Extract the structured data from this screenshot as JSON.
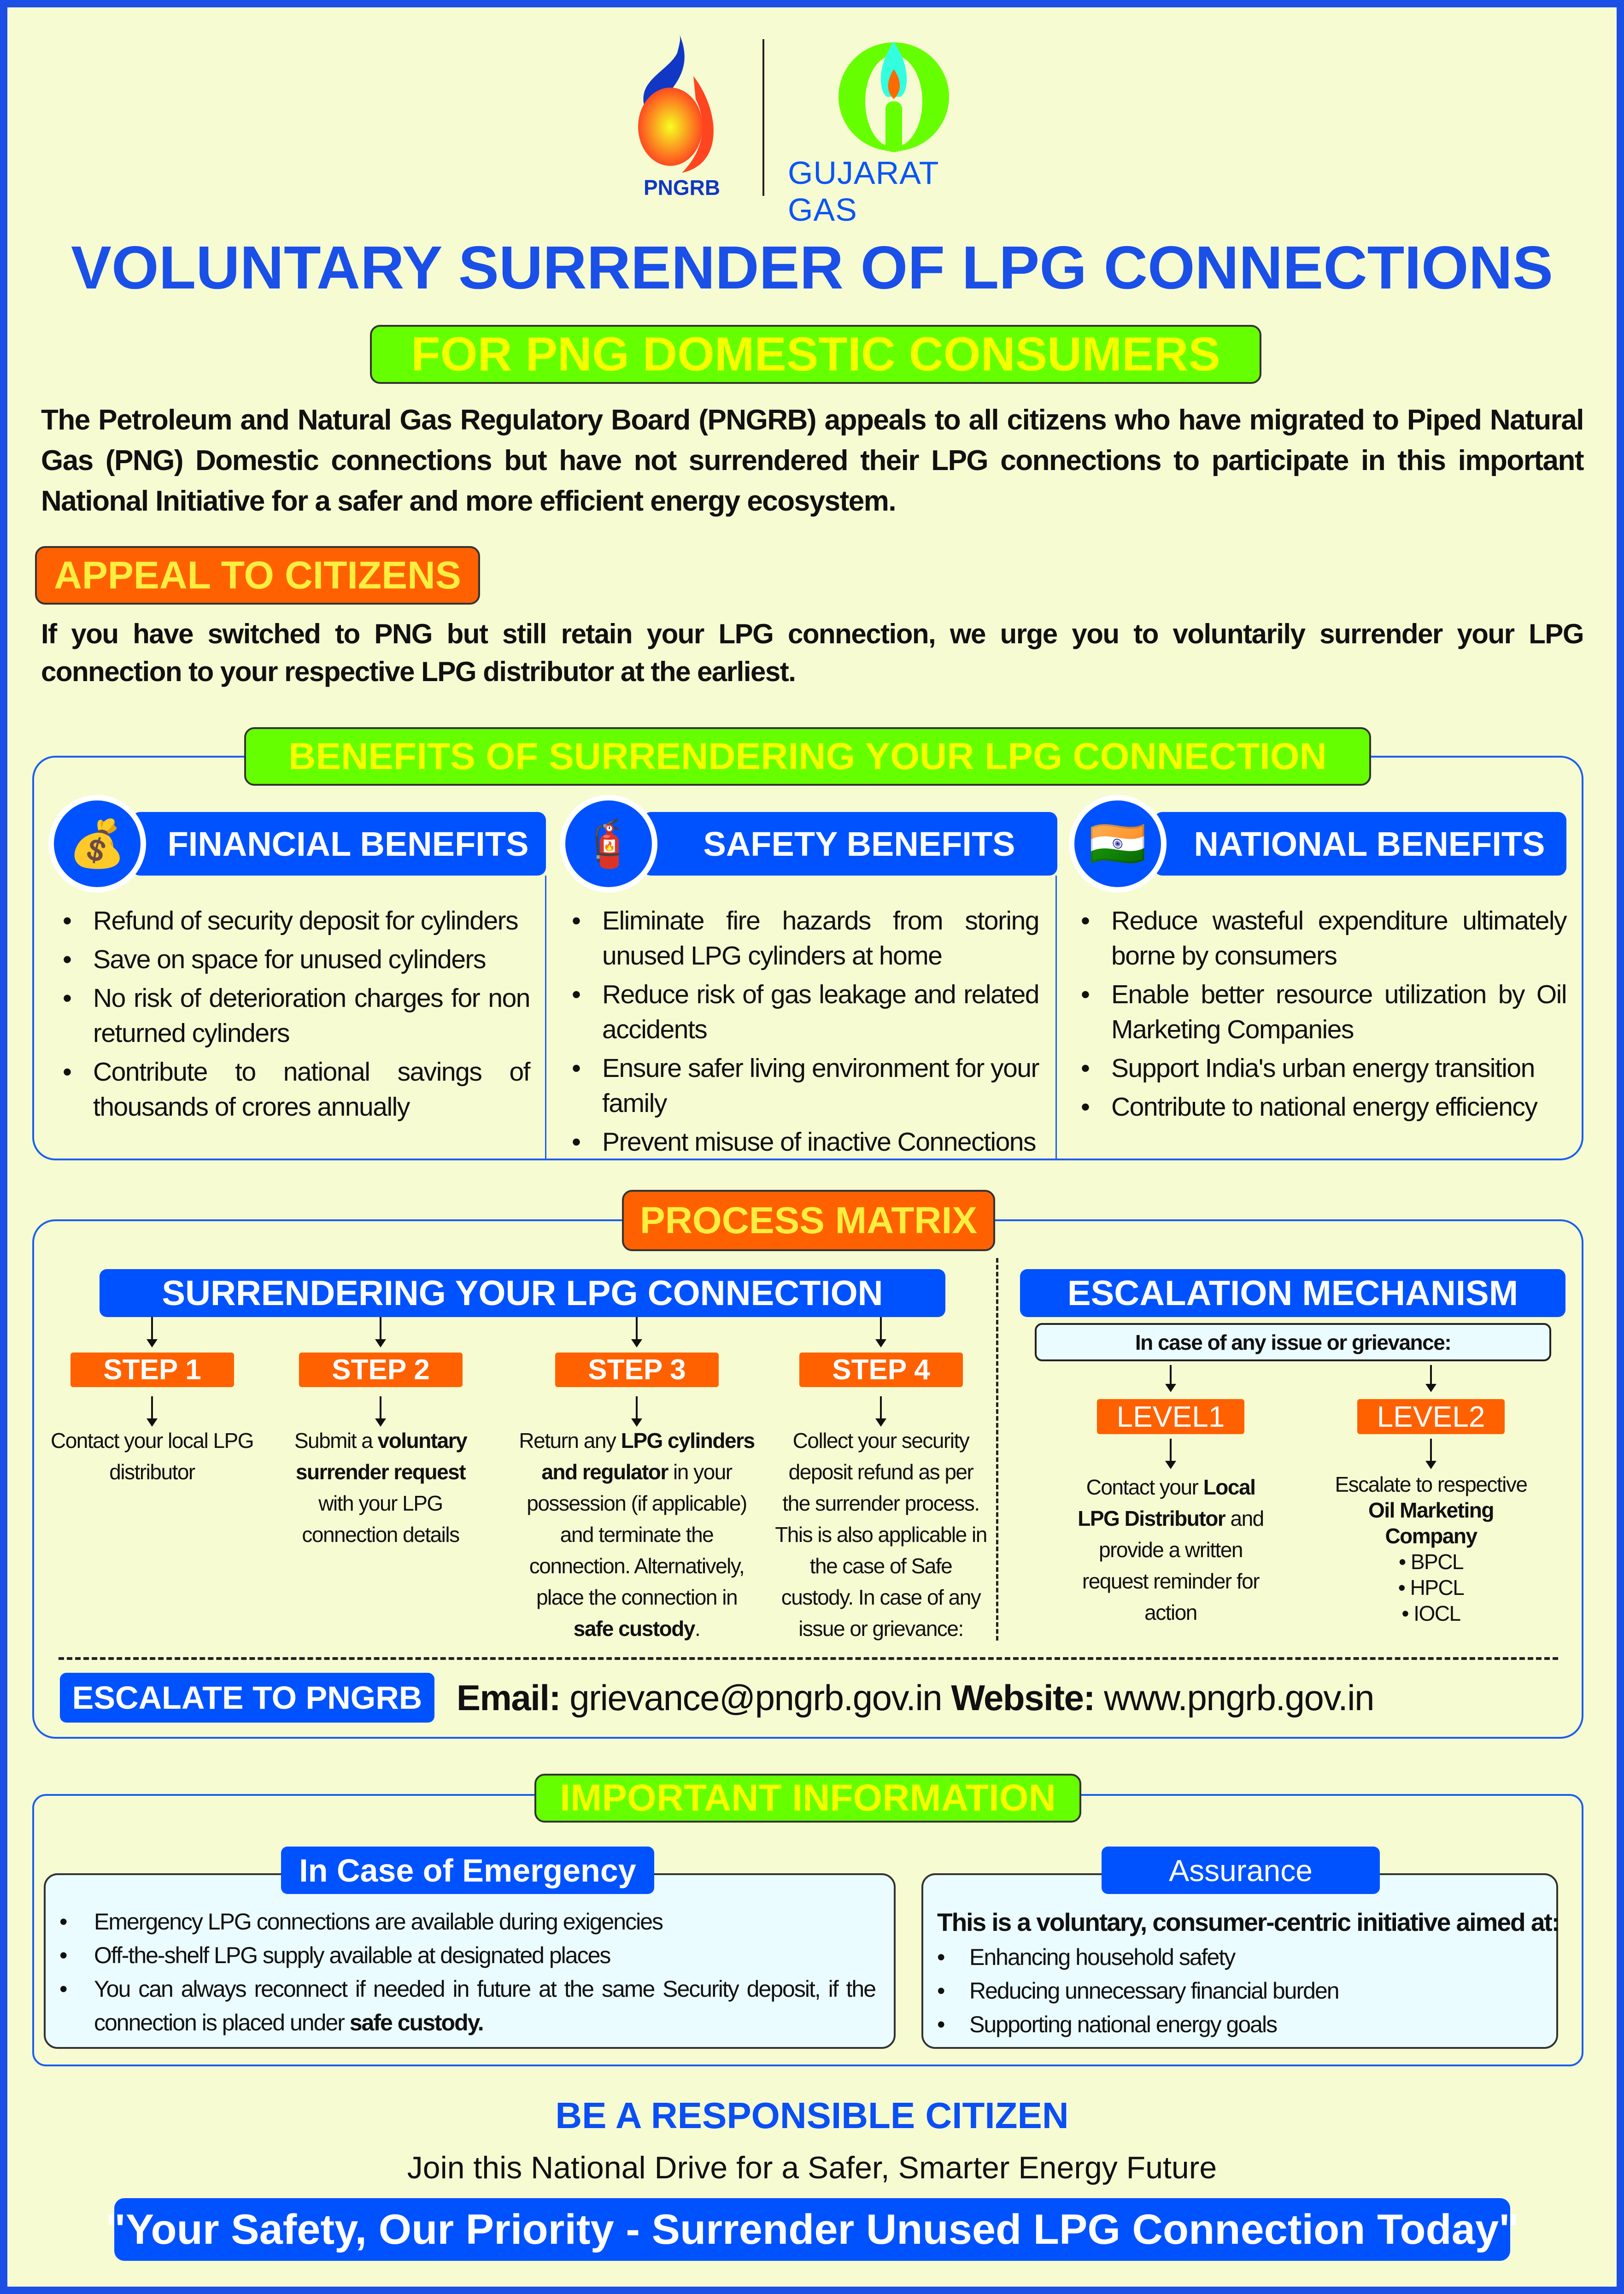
{
  "logos": {
    "pngrb": "PNGRB",
    "gujarat_gas": "GUJARAT GAS"
  },
  "title": "VOLUNTARY SURRENDER OF LPG CONNECTIONS",
  "subtitle": "FOR PNG DOMESTIC CONSUMERS",
  "intro": "The Petroleum and Natural Gas Regulatory Board (PNGRB) appeals to all citizens who have migrated to Piped Natural Gas (PNG) Domestic connections but have not surrendered their LPG connections to participate in this important National Initiative for a safer and more efficient energy ecosystem.",
  "appeal": {
    "heading": "APPEAL TO CITIZENS",
    "text": "If you have switched to PNG but still retain your LPG connection, we urge you to voluntarily surrender your LPG connection to your respective LPG distributor at the earliest."
  },
  "benefits": {
    "heading": "BENEFITS OF SURRENDERING YOUR LPG CONNECTION",
    "columns": [
      {
        "title": "FINANCIAL BENEFITS",
        "icon": "money-bag-icon",
        "items": [
          "Refund of security deposit for cylinders",
          "Save on space for unused cylinders",
          "No risk of deterioration charges for non returned cylinders",
          "Contribute to national savings of thousands of crores annually"
        ]
      },
      {
        "title": "SAFETY BENEFITS",
        "icon": "safety-person-icon",
        "items": [
          "Eliminate fire hazards from storing unused LPG cylinders at home",
          "Reduce risk of gas leakage and related accidents",
          "Ensure safer living environment for your family",
          "Prevent misuse of inactive Connections"
        ]
      },
      {
        "title": "NATIONAL BENEFITS",
        "icon": "national-savings-icon",
        "items": [
          "Reduce wasteful expenditure ultimately borne by consumers",
          "Enable better resource utilization by Oil Marketing Companies",
          "Support India's urban energy transition",
          "Contribute to national energy efficiency"
        ]
      }
    ]
  },
  "process": {
    "heading": "PROCESS MATRIX",
    "surrender_heading": "SURRENDERING YOUR LPG CONNECTION",
    "steps": [
      {
        "label": "STEP 1",
        "parts": [
          [
            "Contact your local LPG distributor",
            false
          ]
        ]
      },
      {
        "label": "STEP 2",
        "parts": [
          [
            "Submit a ",
            false
          ],
          [
            "voluntary surrender request",
            true
          ],
          [
            " with your LPG connection details",
            false
          ]
        ]
      },
      {
        "label": "STEP 3",
        "parts": [
          [
            "Return any ",
            false
          ],
          [
            "LPG cylinders and regulator",
            true
          ],
          [
            " in your possession (if applicable) and terminate the connection. Alternatively, place the connection in ",
            false
          ],
          [
            "safe custody",
            true
          ],
          [
            ".",
            false
          ]
        ]
      },
      {
        "label": "STEP 4",
        "parts": [
          [
            "Collect your security deposit refund as per the surrender process. This is also applicable in the case of Safe custody. In case of any issue or grievance:",
            false
          ]
        ]
      }
    ],
    "escalation_heading": "ESCALATION  MECHANISM",
    "grievance": "In case of any issue or grievance:",
    "levels": [
      {
        "label": "LEVEL1",
        "parts": [
          [
            "Contact your ",
            false
          ],
          [
            "Local LPG Distributor",
            true
          ],
          [
            " and provide a written request reminder for action",
            false
          ]
        ]
      },
      {
        "label": "LEVEL2",
        "parts": [
          [
            "Escalate to respective ",
            false
          ],
          [
            "Oil Marketing Company",
            true
          ]
        ],
        "companies": [
          "• BPCL",
          "• HPCL",
          "• IOCL"
        ]
      }
    ],
    "escalate_label": "ESCALATE TO PNGRB",
    "email_label": "Email:",
    "email": "grievance@pngrb.gov.in",
    "website_label": "Website:",
    "website": "www.pngrb.gov.in"
  },
  "important": {
    "heading": "IMPORTANT INFORMATION",
    "emergency": {
      "title": "In Case of Emergency",
      "items": [
        "Emergency LPG connections are available during exigencies",
        "Off-the-shelf LPG supply available at designated places"
      ],
      "last_item": "You can always reconnect if needed in future at the same Security deposit, if the connection is placed under ",
      "last_item_bold": "safe custody."
    },
    "assurance": {
      "title": "Assurance",
      "lead": "This is a voluntary, consumer-centric initiative aimed at:",
      "items": [
        "Enhancing household safety",
        "Reducing unnecessary financial burden",
        "Supporting national energy goals"
      ]
    }
  },
  "footer": {
    "heading": "BE A RESPONSIBLE CITIZEN",
    "tagline": "Join this National Drive for a Safer, Smarter Energy Future",
    "slogan": "\"Your Safety, Our Priority - Surrender Unused LPG Connection Today\""
  },
  "colors": {
    "primary_blue": "#0052ff",
    "orange": "#ff6100",
    "green": "#66ff00",
    "yellow_text": "#f4ff00",
    "background": "#f6fbd1"
  }
}
